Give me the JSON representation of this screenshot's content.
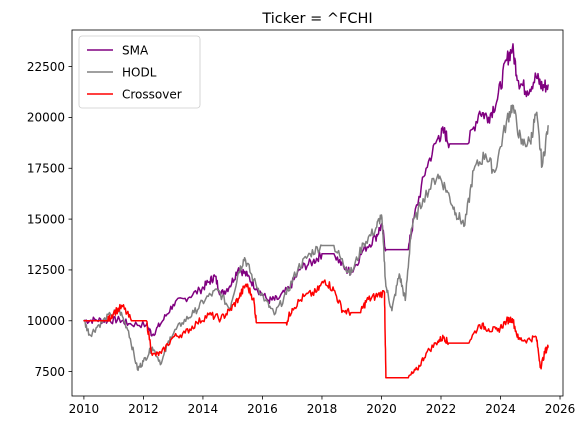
{
  "chart_data": {
    "type": "line",
    "title": "Ticker = ^FCHI",
    "xlabel": "",
    "ylabel": "",
    "xlim": [
      2009.6,
      2026.1
    ],
    "ylim": [
      6300,
      24300
    ],
    "x_ticks": [
      2010,
      2012,
      2014,
      2016,
      2018,
      2020,
      2022,
      2024,
      2026
    ],
    "x_tick_labels": [
      "2010",
      "2012",
      "2014",
      "2016",
      "2018",
      "2020",
      "2022",
      "2024",
      "2026"
    ],
    "y_ticks": [
      7500,
      10000,
      12500,
      15000,
      17500,
      20000,
      22500
    ],
    "y_tick_labels": [
      "7500",
      "10000",
      "12500",
      "15000",
      "17500",
      "20000",
      "22500"
    ],
    "grid": false,
    "legend_position": "upper left",
    "series": [
      {
        "name": "SMA",
        "color": "#800080",
        "points": [
          [
            2010.0,
            10000
          ],
          [
            2010.4,
            10050
          ],
          [
            2010.8,
            10000
          ],
          [
            2011.2,
            10050
          ],
          [
            2011.5,
            9850
          ],
          [
            2012.1,
            9800
          ],
          [
            2012.3,
            9300
          ],
          [
            2012.6,
            9900
          ],
          [
            2013.0,
            10800
          ],
          [
            2013.4,
            11100
          ],
          [
            2013.9,
            11500
          ],
          [
            2014.2,
            11900
          ],
          [
            2014.4,
            12200
          ],
          [
            2014.6,
            11300
          ],
          [
            2014.9,
            11700
          ],
          [
            2015.2,
            12600
          ],
          [
            2015.5,
            12200
          ],
          [
            2015.8,
            11600
          ],
          [
            2016.2,
            11000
          ],
          [
            2016.5,
            11050
          ],
          [
            2016.9,
            11600
          ],
          [
            2017.3,
            12600
          ],
          [
            2017.7,
            12900
          ],
          [
            2018.0,
            13300
          ],
          [
            2018.4,
            13300
          ],
          [
            2018.8,
            12500
          ],
          [
            2019.0,
            12400
          ],
          [
            2019.4,
            13500
          ],
          [
            2019.8,
            14100
          ],
          [
            2020.0,
            14700
          ],
          [
            2020.15,
            13500
          ],
          [
            2020.9,
            13500
          ],
          [
            2021.1,
            15100
          ],
          [
            2021.5,
            17500
          ],
          [
            2021.9,
            19000
          ],
          [
            2022.1,
            19300
          ],
          [
            2022.3,
            18700
          ],
          [
            2022.9,
            18700
          ],
          [
            2023.3,
            20300
          ],
          [
            2023.6,
            20000
          ],
          [
            2023.9,
            20900
          ],
          [
            2024.2,
            22800
          ],
          [
            2024.4,
            23400
          ],
          [
            2024.6,
            21800
          ],
          [
            2024.9,
            21300
          ],
          [
            2025.2,
            22000
          ],
          [
            2025.4,
            21500
          ],
          [
            2025.6,
            21600
          ]
        ]
      },
      {
        "name": "HODL",
        "color": "#808080",
        "points": [
          [
            2010.0,
            10000
          ],
          [
            2010.2,
            9300
          ],
          [
            2010.5,
            9800
          ],
          [
            2010.9,
            10300
          ],
          [
            2011.2,
            10500
          ],
          [
            2011.5,
            9500
          ],
          [
            2011.8,
            7600
          ],
          [
            2012.0,
            8000
          ],
          [
            2012.3,
            8700
          ],
          [
            2012.6,
            7900
          ],
          [
            2012.9,
            9200
          ],
          [
            2013.3,
            9900
          ],
          [
            2013.7,
            10400
          ],
          [
            2014.1,
            11100
          ],
          [
            2014.5,
            11500
          ],
          [
            2014.9,
            10600
          ],
          [
            2015.2,
            12400
          ],
          [
            2015.4,
            13100
          ],
          [
            2015.7,
            12000
          ],
          [
            2016.1,
            11000
          ],
          [
            2016.4,
            10300
          ],
          [
            2016.8,
            11300
          ],
          [
            2017.2,
            12600
          ],
          [
            2017.6,
            13300
          ],
          [
            2018.0,
            13700
          ],
          [
            2018.4,
            13700
          ],
          [
            2018.8,
            12600
          ],
          [
            2019.0,
            12400
          ],
          [
            2019.4,
            13800
          ],
          [
            2019.8,
            14500
          ],
          [
            2020.0,
            15200
          ],
          [
            2020.15,
            11700
          ],
          [
            2020.35,
            10500
          ],
          [
            2020.6,
            12300
          ],
          [
            2020.8,
            11000
          ],
          [
            2021.0,
            14500
          ],
          [
            2021.4,
            16000
          ],
          [
            2021.9,
            17200
          ],
          [
            2022.2,
            16400
          ],
          [
            2022.5,
            15300
          ],
          [
            2022.8,
            14700
          ],
          [
            2023.1,
            17400
          ],
          [
            2023.5,
            18200
          ],
          [
            2023.8,
            17300
          ],
          [
            2024.2,
            19800
          ],
          [
            2024.4,
            20600
          ],
          [
            2024.7,
            18700
          ],
          [
            2025.0,
            18800
          ],
          [
            2025.2,
            20200
          ],
          [
            2025.4,
            17600
          ],
          [
            2025.6,
            19600
          ]
        ]
      },
      {
        "name": "Crossover",
        "color": "#ff0000",
        "points": [
          [
            2010.0,
            10000
          ],
          [
            2010.8,
            10000
          ],
          [
            2011.0,
            10400
          ],
          [
            2011.3,
            10700
          ],
          [
            2011.6,
            10000
          ],
          [
            2012.1,
            10000
          ],
          [
            2012.3,
            8300
          ],
          [
            2012.6,
            8400
          ],
          [
            2013.0,
            9200
          ],
          [
            2013.4,
            9400
          ],
          [
            2013.8,
            9900
          ],
          [
            2014.2,
            10300
          ],
          [
            2014.6,
            10100
          ],
          [
            2014.9,
            10500
          ],
          [
            2015.2,
            11100
          ],
          [
            2015.45,
            11800
          ],
          [
            2015.7,
            11100
          ],
          [
            2015.8,
            9900
          ],
          [
            2016.8,
            9900
          ],
          [
            2017.0,
            10600
          ],
          [
            2017.4,
            11200
          ],
          [
            2017.8,
            11400
          ],
          [
            2018.1,
            12000
          ],
          [
            2018.4,
            11500
          ],
          [
            2018.7,
            10500
          ],
          [
            2019.0,
            10400
          ],
          [
            2019.3,
            10400
          ],
          [
            2019.5,
            11000
          ],
          [
            2019.8,
            11200
          ],
          [
            2020.1,
            11400
          ],
          [
            2020.15,
            7200
          ],
          [
            2020.9,
            7200
          ],
          [
            2021.2,
            7600
          ],
          [
            2021.5,
            8400
          ],
          [
            2021.9,
            9000
          ],
          [
            2022.1,
            9200
          ],
          [
            2022.25,
            8900
          ],
          [
            2022.9,
            8900
          ],
          [
            2023.3,
            9800
          ],
          [
            2023.6,
            9600
          ],
          [
            2023.9,
            9500
          ],
          [
            2024.2,
            10000
          ],
          [
            2024.4,
            10100
          ],
          [
            2024.6,
            9100
          ],
          [
            2024.9,
            9050
          ],
          [
            2025.2,
            9200
          ],
          [
            2025.35,
            7700
          ],
          [
            2025.5,
            8500
          ],
          [
            2025.6,
            8700
          ]
        ]
      }
    ]
  }
}
